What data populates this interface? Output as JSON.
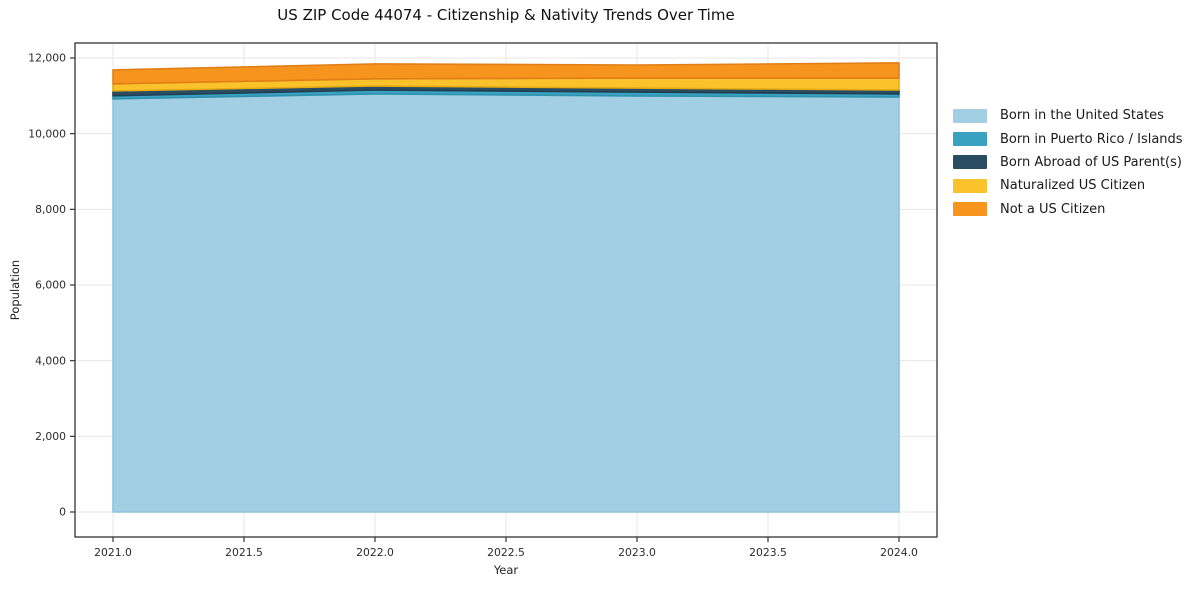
{
  "figure": {
    "title": "US ZIP Code 44074 - Citizenship & Nativity Trends Over Time",
    "xlabel": "Year",
    "ylabel": "Population"
  },
  "legend": {
    "position": "right-outside",
    "items": [
      {
        "label": "Born in the United States",
        "color": "#a3cfe5"
      },
      {
        "label": "Born in Puerto Rico / Islands",
        "color": "#39a2c1"
      },
      {
        "label": "Born Abroad of US Parent(s)",
        "color": "#2a4d63"
      },
      {
        "label": "Naturalized US Citizen",
        "color": "#fcc22c"
      },
      {
        "label": "Not a US Citizen",
        "color": "#f7941d"
      }
    ]
  },
  "chart_data": {
    "type": "area",
    "stacked": true,
    "title": "US ZIP Code 44074 - Citizenship & Nativity Trends Over Time",
    "xlabel": "Year",
    "ylabel": "Population",
    "x": [
      2021,
      2022,
      2023,
      2024
    ],
    "series": [
      {
        "name": "Born in the United States",
        "color": "#a3cfe5",
        "edge_color": "#8ec4de",
        "values": [
          10920,
          11050,
          10995,
          10970
        ]
      },
      {
        "name": "Born in Puerto Rico / Islands",
        "color": "#39a2c1",
        "edge_color": "#2f93b0",
        "values": [
          80,
          105,
          105,
          80
        ]
      },
      {
        "name": "Born Abroad of US Parent(s)",
        "color": "#2a4d63",
        "edge_color": "#223f51",
        "values": [
          130,
          105,
          105,
          105
        ]
      },
      {
        "name": "Naturalized US Citizen",
        "color": "#fcc22c",
        "edge_color": "#e5ab12",
        "values": [
          185,
          190,
          265,
          315
        ]
      },
      {
        "name": "Not a US Citizen",
        "color": "#f7941d",
        "edge_color": "#e07f17",
        "values": [
          370,
          395,
          345,
          400
        ]
      }
    ],
    "totals": [
      11685,
      11845,
      11815,
      11870
    ],
    "xticks": [
      2021,
      2021.5,
      2022,
      2022.5,
      2023,
      2023.5,
      2024
    ],
    "xtick_labels": [
      "2021.0",
      "2021.5",
      "2022.0",
      "2022.5",
      "2023.0",
      "2023.5",
      "2024.0"
    ],
    "yticks": [
      0,
      2000,
      4000,
      6000,
      8000,
      10000,
      12000
    ],
    "ytick_labels": [
      "0",
      "2,000",
      "4,000",
      "6,000",
      "8,000",
      "10,000",
      "12,000"
    ],
    "xlim": [
      2020.85,
      2024.15
    ],
    "ylim": [
      -660,
      12400
    ],
    "grid": true,
    "legend_position": "right",
    "grid_color": "#e7e7e7",
    "spine_color": "#333333",
    "tick_color": "#333333",
    "tick_label_color": "#2b2b2b"
  }
}
